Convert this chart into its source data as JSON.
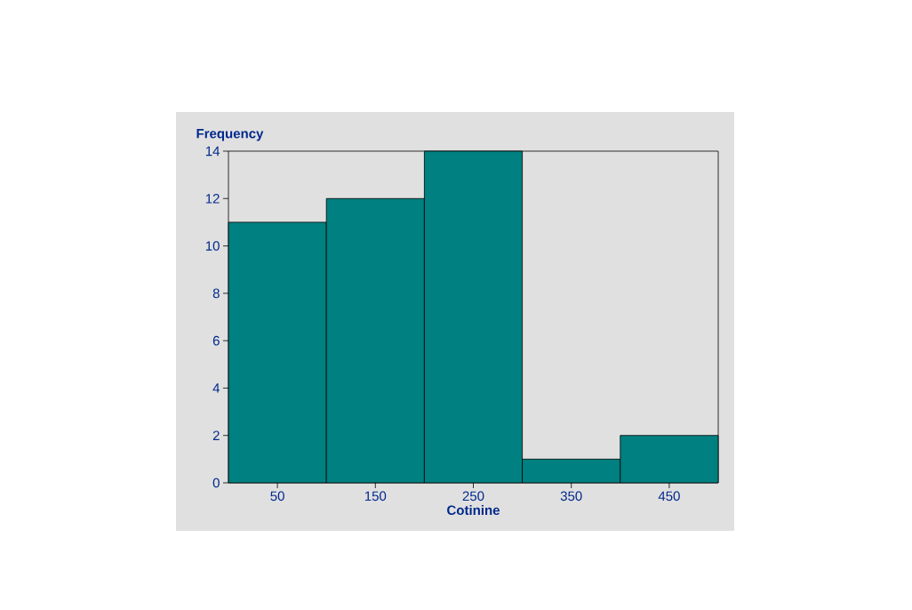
{
  "chart_data": {
    "type": "histogram",
    "xlabel": "Cotinine",
    "ylabel": "Frequency",
    "bins": [
      0,
      100,
      200,
      300,
      400,
      500
    ],
    "values": [
      11,
      12,
      14,
      1,
      2
    ],
    "color": "#008080",
    "xlim": [
      0,
      500
    ],
    "xticks": [
      50,
      150,
      250,
      350,
      450
    ],
    "ylim": [
      0,
      14
    ],
    "yticks": [
      0,
      2,
      4,
      6,
      8,
      10,
      12,
      14
    ]
  }
}
